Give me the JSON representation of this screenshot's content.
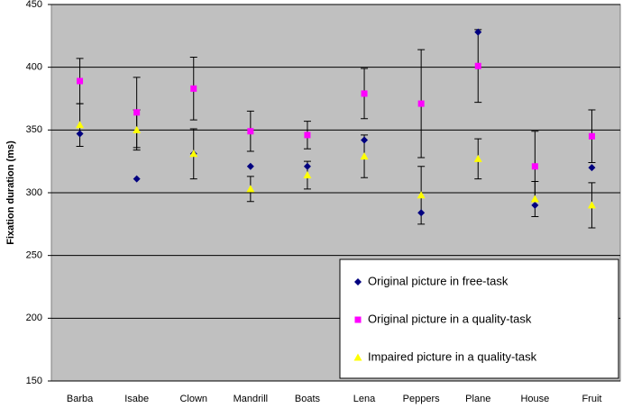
{
  "chart_data": {
    "type": "scatter-errorbar",
    "ylabel": "Fixation duration (ms)",
    "categories": [
      "Barba",
      "Isabe",
      "Clown",
      "Mandrill",
      "Boats",
      "Lena",
      "Peppers",
      "Plane",
      "House",
      "Fruit"
    ],
    "ylim": [
      150,
      450
    ],
    "yticks": [
      150,
      200,
      250,
      300,
      350,
      400,
      450
    ],
    "grid": true,
    "series": [
      {
        "name": "Original picture in free-task",
        "color": "#000080",
        "marker": "diamond",
        "values": [
          347,
          311,
          331,
          321,
          321,
          342,
          284,
          428,
          290,
          320
        ]
      },
      {
        "name": "Original picture in a quality-task",
        "color": "#ff00ff",
        "marker": "square",
        "values": [
          389,
          364,
          383,
          349,
          346,
          379,
          371,
          401,
          321,
          345
        ],
        "errors": [
          18,
          28,
          25,
          16,
          11,
          20,
          43,
          29,
          28,
          21
        ]
      },
      {
        "name": "Impaired picture in a quality-task",
        "color": "#ffff00",
        "marker": "triangle",
        "values": [
          354,
          350,
          331,
          303,
          314,
          329,
          298,
          327,
          295,
          290
        ],
        "errors": [
          17,
          16,
          20,
          10,
          11,
          17,
          23,
          16,
          14,
          18
        ]
      }
    ]
  }
}
